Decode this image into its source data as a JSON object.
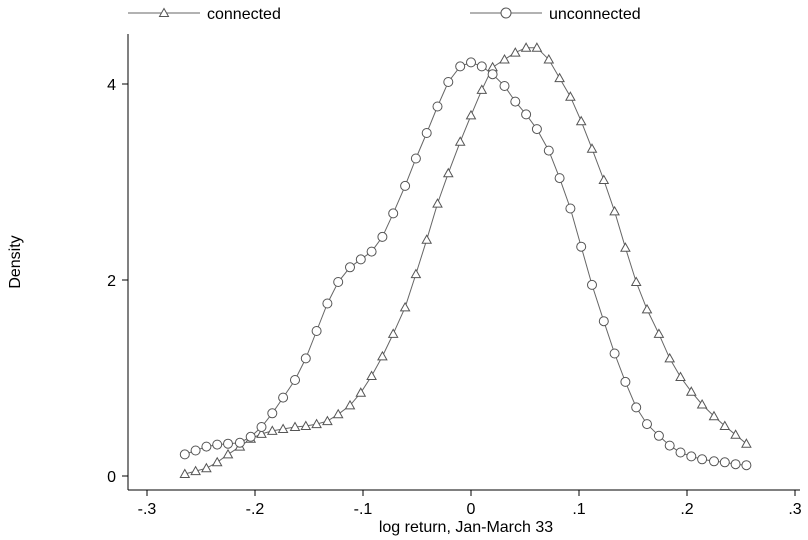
{
  "chart_data": {
    "type": "line",
    "title": "",
    "xlabel": "log return, Jan-March 33",
    "ylabel": "Density",
    "xlim": [
      -0.3,
      0.3
    ],
    "ylim": [
      0,
      4.5
    ],
    "xticks": [
      -0.3,
      -0.2,
      -0.1,
      0,
      0.1,
      0.2,
      0.3
    ],
    "xtick_labels": [
      "-.3",
      "-.2",
      "-.1",
      "0",
      ".1",
      ".2",
      ".3"
    ],
    "yticks": [
      0,
      2,
      4
    ],
    "ytick_labels": [
      "0",
      "2",
      "4"
    ],
    "grid": false,
    "legend_position": "top",
    "line_color": "#666666",
    "marker_color": "#555555",
    "series": [
      {
        "name": "connected",
        "marker": "triangle",
        "points": [
          [
            -0.265,
            0.02
          ],
          [
            -0.255,
            0.05
          ],
          [
            -0.245,
            0.08
          ],
          [
            -0.235,
            0.14
          ],
          [
            -0.225,
            0.22
          ],
          [
            -0.214,
            0.3
          ],
          [
            -0.204,
            0.38
          ],
          [
            -0.194,
            0.43
          ],
          [
            -0.184,
            0.46
          ],
          [
            -0.174,
            0.48
          ],
          [
            -0.163,
            0.5
          ],
          [
            -0.153,
            0.51
          ],
          [
            -0.143,
            0.53
          ],
          [
            -0.133,
            0.56
          ],
          [
            -0.123,
            0.63
          ],
          [
            -0.112,
            0.72
          ],
          [
            -0.102,
            0.85
          ],
          [
            -0.092,
            1.02
          ],
          [
            -0.082,
            1.22
          ],
          [
            -0.072,
            1.45
          ],
          [
            -0.061,
            1.72
          ],
          [
            -0.051,
            2.06
          ],
          [
            -0.041,
            2.41
          ],
          [
            -0.031,
            2.78
          ],
          [
            -0.021,
            3.09
          ],
          [
            -0.01,
            3.41
          ],
          [
            0.0,
            3.68
          ],
          [
            0.01,
            3.94
          ],
          [
            0.02,
            4.17
          ],
          [
            0.031,
            4.25
          ],
          [
            0.041,
            4.32
          ],
          [
            0.051,
            4.37
          ],
          [
            0.061,
            4.37
          ],
          [
            0.072,
            4.25
          ],
          [
            0.082,
            4.06
          ],
          [
            0.092,
            3.87
          ],
          [
            0.102,
            3.62
          ],
          [
            0.112,
            3.34
          ],
          [
            0.123,
            3.02
          ],
          [
            0.133,
            2.7
          ],
          [
            0.143,
            2.33
          ],
          [
            0.153,
            1.98
          ],
          [
            0.163,
            1.7
          ],
          [
            0.174,
            1.45
          ],
          [
            0.184,
            1.2
          ],
          [
            0.194,
            1.01
          ],
          [
            0.204,
            0.86
          ],
          [
            0.214,
            0.73
          ],
          [
            0.225,
            0.61
          ],
          [
            0.235,
            0.51
          ],
          [
            0.245,
            0.42
          ],
          [
            0.255,
            0.33
          ]
        ]
      },
      {
        "name": "unconnected",
        "marker": "circle",
        "points": [
          [
            -0.265,
            0.22
          ],
          [
            -0.255,
            0.26
          ],
          [
            -0.245,
            0.3
          ],
          [
            -0.235,
            0.32
          ],
          [
            -0.225,
            0.33
          ],
          [
            -0.214,
            0.34
          ],
          [
            -0.204,
            0.4
          ],
          [
            -0.194,
            0.5
          ],
          [
            -0.184,
            0.64
          ],
          [
            -0.174,
            0.8
          ],
          [
            -0.163,
            0.98
          ],
          [
            -0.153,
            1.2
          ],
          [
            -0.143,
            1.48
          ],
          [
            -0.133,
            1.76
          ],
          [
            -0.123,
            1.98
          ],
          [
            -0.112,
            2.13
          ],
          [
            -0.102,
            2.21
          ],
          [
            -0.092,
            2.29
          ],
          [
            -0.082,
            2.44
          ],
          [
            -0.072,
            2.68
          ],
          [
            -0.061,
            2.96
          ],
          [
            -0.051,
            3.24
          ],
          [
            -0.041,
            3.5
          ],
          [
            -0.031,
            3.77
          ],
          [
            -0.021,
            4.02
          ],
          [
            -0.01,
            4.18
          ],
          [
            0.0,
            4.22
          ],
          [
            0.01,
            4.18
          ],
          [
            0.02,
            4.1
          ],
          [
            0.031,
            3.98
          ],
          [
            0.041,
            3.82
          ],
          [
            0.051,
            3.69
          ],
          [
            0.061,
            3.54
          ],
          [
            0.072,
            3.32
          ],
          [
            0.082,
            3.04
          ],
          [
            0.092,
            2.73
          ],
          [
            0.102,
            2.34
          ],
          [
            0.112,
            1.95
          ],
          [
            0.123,
            1.58
          ],
          [
            0.133,
            1.25
          ],
          [
            0.143,
            0.96
          ],
          [
            0.153,
            0.7
          ],
          [
            0.163,
            0.53
          ],
          [
            0.174,
            0.41
          ],
          [
            0.184,
            0.31
          ],
          [
            0.194,
            0.24
          ],
          [
            0.204,
            0.2
          ],
          [
            0.214,
            0.17
          ],
          [
            0.225,
            0.15
          ],
          [
            0.235,
            0.14
          ],
          [
            0.245,
            0.12
          ],
          [
            0.255,
            0.11
          ]
        ]
      }
    ]
  }
}
